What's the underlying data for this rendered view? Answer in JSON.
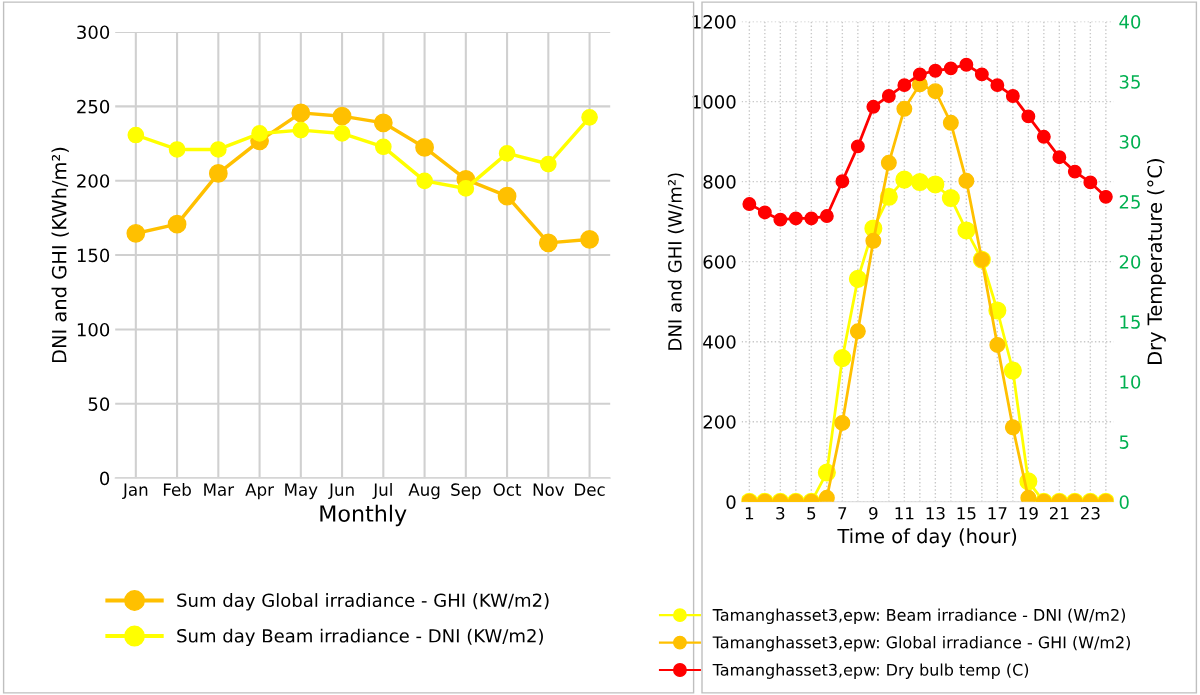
{
  "chart_data": [
    {
      "type": "line",
      "xlabel": "Monthly",
      "ylabel": "DNI and GHI (KWh/m²)",
      "categories": [
        "Jan",
        "Feb",
        "Mar",
        "Apr",
        "May",
        "Jun",
        "Jul",
        "Aug",
        "Sep",
        "Oct",
        "Nov",
        "Dec"
      ],
      "ylim": [
        0,
        300
      ],
      "yticks": [
        0,
        50,
        100,
        150,
        200,
        250,
        300
      ],
      "grid": true,
      "legend": "bottom",
      "marker": "circle",
      "line_style": "solid",
      "series": [
        {
          "name": "Sum day Global irradiance - GHI (KW/m2)",
          "color": "#ffc000",
          "values": [
            164.6,
            170.8,
            204.9,
            226.8,
            245.6,
            243.4,
            238.9,
            222.4,
            200.9,
            189.6,
            158.2,
            160.5
          ]
        },
        {
          "name": "Sum day Beam irradiance - DNI (KW/m2)",
          "color": "#ffff00",
          "values": [
            230.7,
            221,
            221,
            231.8,
            234,
            231.8,
            222.8,
            199.9,
            194.8,
            218.4,
            211.2,
            242.6
          ]
        }
      ]
    },
    {
      "type": "line",
      "xlabel": "Time of day (hour)",
      "ylabel": "DNI and GHI (W/m²)",
      "y2label": "Dry Temperature (°C)",
      "categories": [
        "1",
        null,
        "3",
        null,
        "5",
        null,
        "7",
        null,
        "9",
        null,
        "11",
        null,
        "13",
        null,
        "15",
        null,
        "17",
        null,
        "19",
        null,
        "21",
        null,
        "23",
        null
      ],
      "ylim": [
        0,
        1200
      ],
      "yticks": [
        0,
        200,
        400,
        600,
        800,
        1000,
        1200
      ],
      "y2lim": [
        0,
        40
      ],
      "y2ticks": [
        0,
        5,
        10,
        15,
        20,
        25,
        30,
        35,
        40
      ],
      "grid": true,
      "legend": "bottom",
      "marker": "circle",
      "line_style": "solid",
      "series": [
        {
          "name": "Tamanghasset3,epw: Beam irradiance - DNI (W/m2)",
          "color": "#ffff00",
          "values": [
            0,
            0,
            0,
            0,
            0,
            73,
            359,
            557,
            683,
            762,
            805,
            799,
            793,
            759,
            678,
            605,
            478,
            328,
            51,
            0,
            0,
            0,
            0,
            0
          ]
        },
        {
          "name": "Tamanghasset3,epw: Global irradiance - GHI (W/m2)",
          "color": "#ffc000",
          "values": [
            0,
            0,
            0,
            0,
            0,
            10,
            197,
            426,
            652,
            847,
            982,
            1043,
            1026,
            947,
            802,
            605,
            392,
            186,
            10,
            0,
            0,
            0,
            0,
            0
          ]
        },
        {
          "name": "Tamanghasset3,epw: Dry bulb temp (C)",
          "color": "#ff0000",
          "axis": "y2",
          "values": [
            24.8,
            24.1,
            23.5,
            23.6,
            23.6,
            23.8,
            26.7,
            29.6,
            32.9,
            33.8,
            34.7,
            35.6,
            35.9,
            36.1,
            36.4,
            35.6,
            34.7,
            33.8,
            32.1,
            30.4,
            28.7,
            27.5,
            26.6,
            25.4
          ]
        }
      ]
    }
  ]
}
